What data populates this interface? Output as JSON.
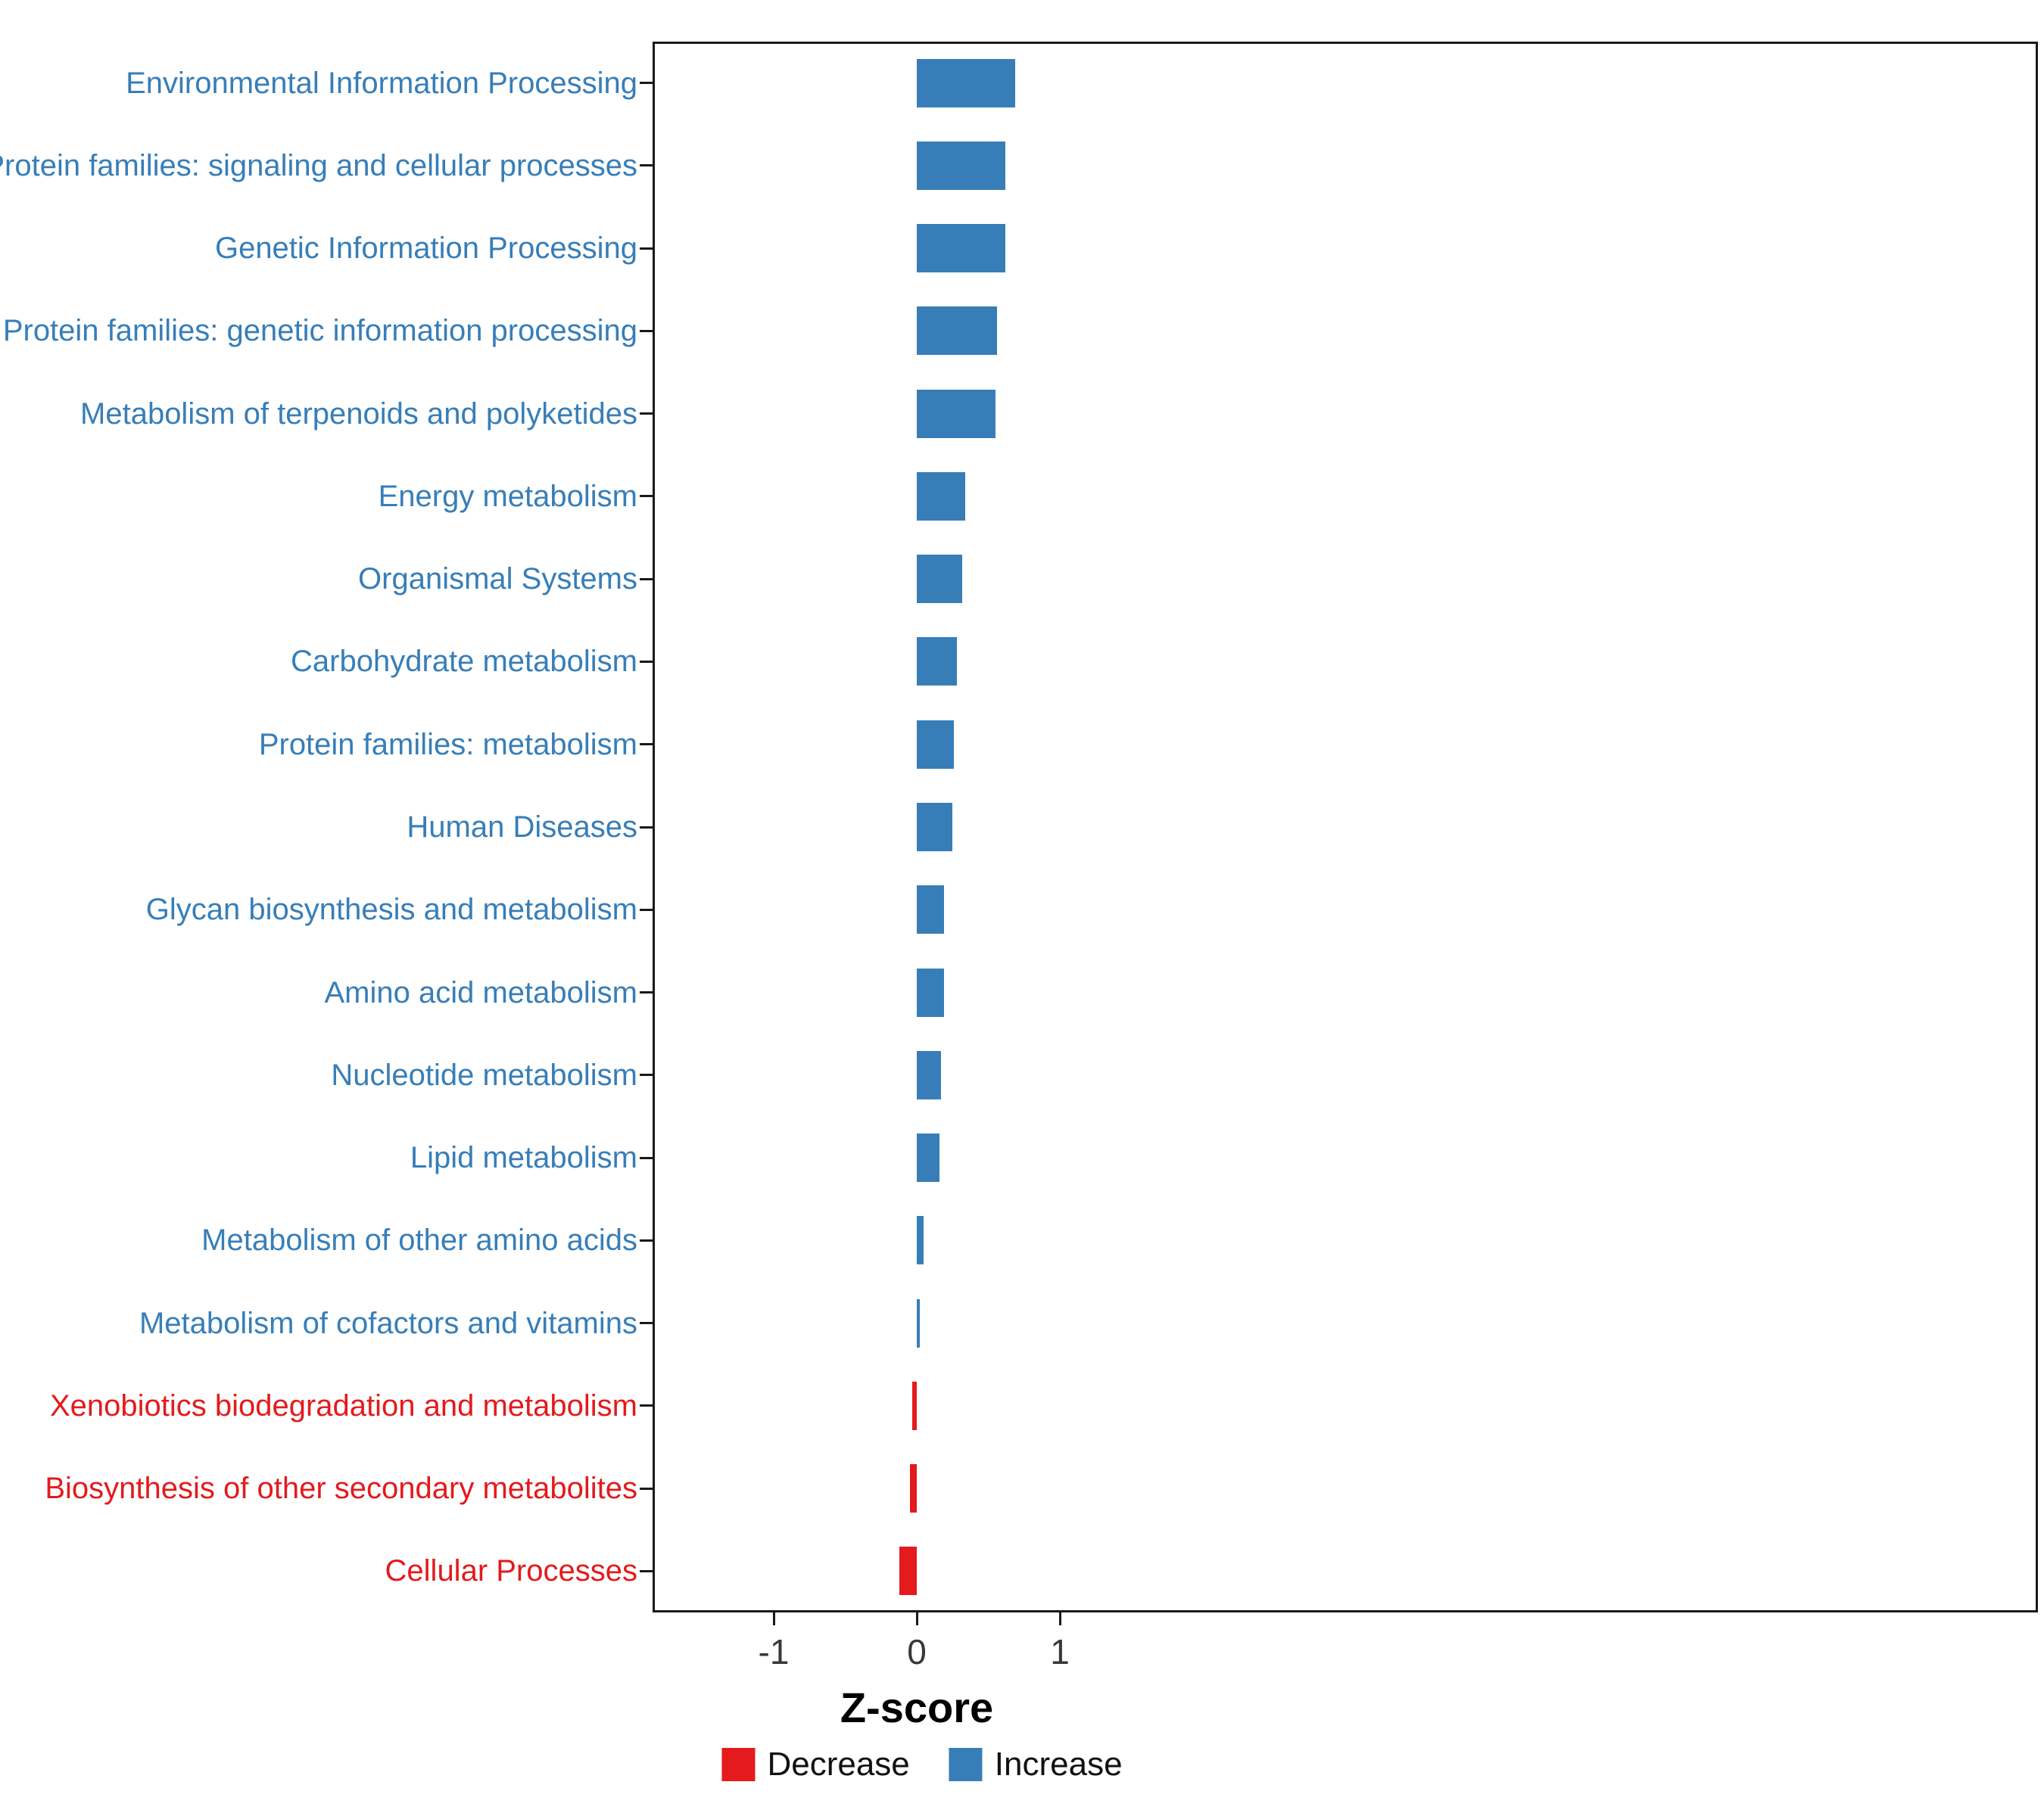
{
  "chart_data": {
    "type": "bar",
    "orientation": "horizontal",
    "title": "",
    "xlabel": "Z-score",
    "ylabel": "",
    "grid": false,
    "legend_position": "bottom",
    "x_ticks": [
      "-1",
      "0",
      "1"
    ],
    "x_tick_values": [
      -1,
      0,
      1
    ],
    "xlim": [
      -1.85,
      7.85
    ],
    "categories": [
      "Environmental Information Processing",
      "Protein families: signaling and cellular processes",
      "Genetic Information Processing",
      "Protein families: genetic information processing",
      "Metabolism of terpenoids and polyketides",
      "Energy metabolism",
      "Organismal Systems",
      "Carbohydrate metabolism",
      "Protein families: metabolism",
      "Human Diseases",
      "Glycan biosynthesis and metabolism",
      "Amino acid metabolism",
      "Nucleotide metabolism",
      "Lipid metabolism",
      "Metabolism of other amino acids",
      "Metabolism of cofactors and vitamins",
      "Xenobiotics biodegradation and metabolism",
      "Biosynthesis of other secondary metabolites",
      "Cellular Processes"
    ],
    "values": [
      0.69,
      0.62,
      0.62,
      0.56,
      0.55,
      0.34,
      0.32,
      0.28,
      0.26,
      0.25,
      0.19,
      0.19,
      0.17,
      0.16,
      0.05,
      0.02,
      -0.03,
      -0.05,
      -0.12
    ],
    "directions": [
      "Increase",
      "Increase",
      "Increase",
      "Increase",
      "Increase",
      "Increase",
      "Increase",
      "Increase",
      "Increase",
      "Increase",
      "Increase",
      "Increase",
      "Increase",
      "Increase",
      "Increase",
      "Increase",
      "Decrease",
      "Decrease",
      "Decrease"
    ],
    "colors": {
      "Increase": "#377EB8",
      "Decrease": "#E41A1C"
    },
    "legend": [
      {
        "label": "Decrease",
        "color": "#E41A1C"
      },
      {
        "label": "Increase",
        "color": "#377EB8"
      }
    ]
  }
}
